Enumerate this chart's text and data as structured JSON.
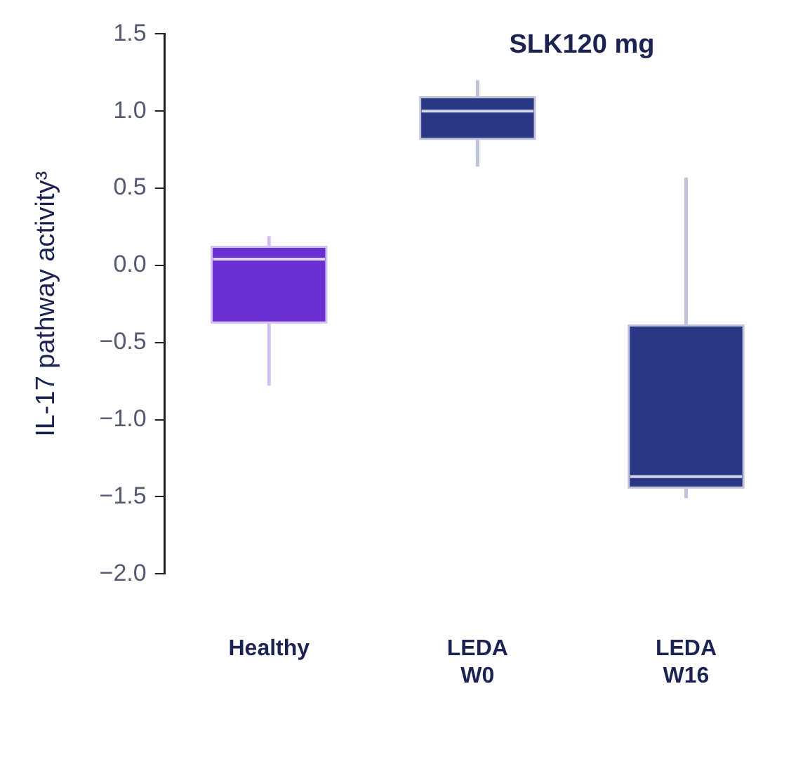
{
  "chart_data": {
    "type": "box",
    "title": "SLK120 mg",
    "ylabel": "IL-17 pathway activity³",
    "categories": [
      "Healthy",
      "LEDA W0",
      "LEDA W16"
    ],
    "colors": [
      "#6a2fd3",
      "#2a3785",
      "#2a3785"
    ],
    "boxes": [
      {
        "low": -0.78,
        "q1": -0.37,
        "median": 0.04,
        "q3": 0.12,
        "high": 0.19
      },
      {
        "low": 0.64,
        "q1": 0.82,
        "median": 1.0,
        "q3": 1.09,
        "high": 1.2
      },
      {
        "low": -1.51,
        "q1": -1.44,
        "median": -1.37,
        "q3": -0.39,
        "high": 0.57
      }
    ],
    "ylim": [
      -2.0,
      1.5
    ],
    "yticks": [
      {
        "value": -2,
        "label": "−2.0"
      },
      {
        "value": -1.5,
        "label": "−1.5"
      },
      {
        "value": -1,
        "label": "−1.0"
      },
      {
        "value": -0.5,
        "label": "−0.5"
      },
      {
        "value": 0,
        "label": "0.0"
      },
      0.5,
      {
        "value": 1,
        "label": "1.0"
      },
      1.5
    ]
  }
}
